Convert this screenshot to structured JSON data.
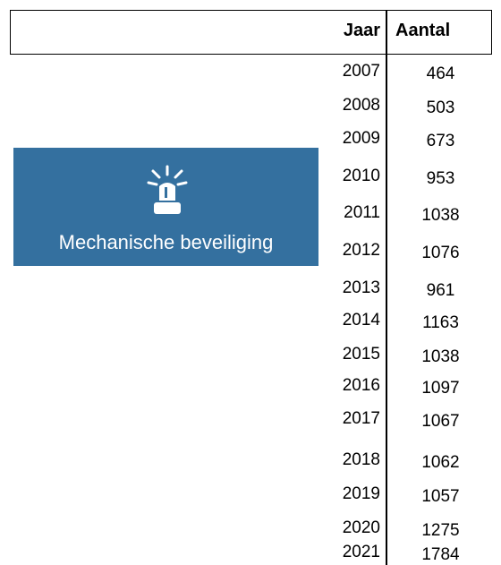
{
  "table": {
    "header": [
      "Jaar",
      "Aantal"
    ],
    "rows": [
      [
        2007,
        464
      ],
      [
        2008,
        503
      ],
      [
        2009,
        673
      ],
      [
        2010,
        953
      ],
      [
        2011,
        1038
      ],
      [
        2012,
        1076
      ],
      [
        2013,
        961
      ],
      [
        2014,
        1163
      ],
      [
        2015,
        1038
      ],
      [
        2016,
        1097
      ],
      [
        2017,
        1067
      ],
      [
        2018,
        1062
      ],
      [
        2019,
        1057
      ],
      [
        2020,
        1275
      ],
      [
        2021,
        1784
      ]
    ]
  },
  "banner": {
    "label": "Mechanische beveiliging"
  }
}
